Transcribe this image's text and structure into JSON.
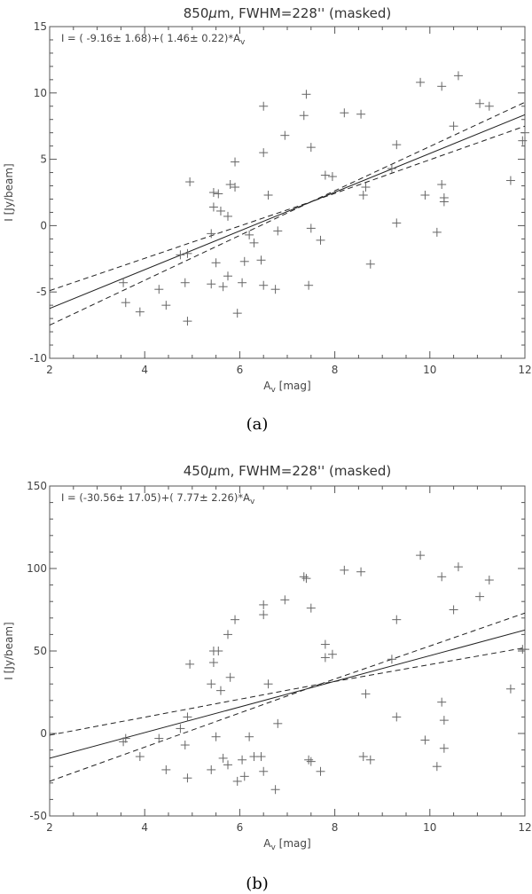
{
  "chart_data": [
    {
      "type": "scatter",
      "title": "850μm, FWHM=228'' (masked)",
      "annotation": "I = ( -9.16±  1.68)+(  1.46±  0.22)*Av",
      "xlabel": "Av [mag]",
      "ylabel": "I [Jy/beam]",
      "xlim": [
        2,
        12
      ],
      "ylim": [
        -10,
        15
      ],
      "xticks": [
        2,
        4,
        6,
        8,
        10,
        12
      ],
      "yticks": [
        -10,
        -5,
        0,
        5,
        10,
        15
      ],
      "caption": "(a)",
      "fit": {
        "intercept": -9.16,
        "slope": 1.46
      },
      "confidence_upper": [
        [
          2,
          -4.9
        ],
        [
          7.5,
          1.8
        ],
        [
          12,
          9.3
        ]
      ],
      "confidence_lower": [
        [
          2,
          -7.5
        ],
        [
          7.5,
          1.8
        ],
        [
          12,
          7.5
        ]
      ],
      "points": [
        [
          3.55,
          -4.3
        ],
        [
          3.6,
          -5.8
        ],
        [
          3.9,
          -6.5
        ],
        [
          4.3,
          -4.8
        ],
        [
          4.45,
          -6.0
        ],
        [
          4.75,
          -2.2
        ],
        [
          4.85,
          -4.3
        ],
        [
          4.9,
          -7.2
        ],
        [
          4.9,
          -2.1
        ],
        [
          4.95,
          3.3
        ],
        [
          5.4,
          -0.6
        ],
        [
          5.4,
          -4.4
        ],
        [
          5.45,
          2.5
        ],
        [
          5.45,
          1.4
        ],
        [
          5.5,
          -2.8
        ],
        [
          5.55,
          2.4
        ],
        [
          5.6,
          1.1
        ],
        [
          5.65,
          -4.6
        ],
        [
          5.75,
          0.7
        ],
        [
          5.75,
          -3.8
        ],
        [
          5.8,
          3.1
        ],
        [
          5.9,
          2.9
        ],
        [
          5.9,
          4.8
        ],
        [
          5.95,
          -6.6
        ],
        [
          6.05,
          -4.3
        ],
        [
          6.1,
          -2.7
        ],
        [
          6.2,
          -0.7
        ],
        [
          6.3,
          -1.3
        ],
        [
          6.45,
          -2.6
        ],
        [
          6.5,
          5.5
        ],
        [
          6.5,
          9.0
        ],
        [
          6.5,
          -4.5
        ],
        [
          6.6,
          2.3
        ],
        [
          6.75,
          -4.8
        ],
        [
          6.8,
          -0.4
        ],
        [
          6.95,
          6.8
        ],
        [
          7.35,
          8.3
        ],
        [
          7.4,
          9.9
        ],
        [
          7.45,
          -4.5
        ],
        [
          7.5,
          -0.2
        ],
        [
          7.5,
          5.9
        ],
        [
          7.7,
          -1.1
        ],
        [
          7.8,
          3.8
        ],
        [
          7.95,
          3.7
        ],
        [
          8.2,
          8.5
        ],
        [
          8.55,
          8.4
        ],
        [
          8.6,
          2.3
        ],
        [
          8.65,
          2.9
        ],
        [
          8.75,
          -2.9
        ],
        [
          9.2,
          4.3
        ],
        [
          9.3,
          6.1
        ],
        [
          9.3,
          0.2
        ],
        [
          9.8,
          10.8
        ],
        [
          9.9,
          2.3
        ],
        [
          10.15,
          -0.5
        ],
        [
          10.25,
          10.5
        ],
        [
          10.25,
          3.1
        ],
        [
          10.3,
          2.1
        ],
        [
          10.3,
          1.8
        ],
        [
          10.5,
          7.5
        ],
        [
          10.6,
          11.3
        ],
        [
          11.05,
          9.2
        ],
        [
          11.25,
          9.0
        ],
        [
          11.7,
          3.4
        ],
        [
          11.95,
          6.4
        ],
        [
          12.0,
          7.0
        ]
      ]
    },
    {
      "type": "scatter",
      "title": "450μm, FWHM=228'' (masked)",
      "annotation": "I = (-30.56± 17.05)+(  7.77±  2.26)*Av",
      "xlabel": "Av [mag]",
      "ylabel": "I [Jy/beam]",
      "xlim": [
        2,
        12
      ],
      "ylim": [
        -50,
        150
      ],
      "xticks": [
        2,
        4,
        6,
        8,
        10,
        12
      ],
      "yticks": [
        -50,
        0,
        50,
        100,
        150
      ],
      "caption": "(b)",
      "fit": {
        "intercept": -30.56,
        "slope": 7.77
      },
      "confidence_upper": [
        [
          2,
          -1.0
        ],
        [
          7.7,
          30.0
        ],
        [
          12,
          73.0
        ]
      ],
      "confidence_lower": [
        [
          2,
          -29.0
        ],
        [
          7.7,
          30.0
        ],
        [
          12,
          52.0
        ]
      ],
      "points": [
        [
          3.55,
          -5
        ],
        [
          3.6,
          -3
        ],
        [
          3.9,
          -14
        ],
        [
          4.3,
          -3
        ],
        [
          4.45,
          -22
        ],
        [
          4.75,
          3
        ],
        [
          4.85,
          -7
        ],
        [
          4.9,
          -27
        ],
        [
          4.9,
          10
        ],
        [
          4.95,
          42
        ],
        [
          5.4,
          -22
        ],
        [
          5.4,
          30
        ],
        [
          5.45,
          50
        ],
        [
          5.45,
          43
        ],
        [
          5.5,
          -2
        ],
        [
          5.55,
          50
        ],
        [
          5.6,
          26
        ],
        [
          5.65,
          -15
        ],
        [
          5.75,
          60
        ],
        [
          5.75,
          -19
        ],
        [
          5.8,
          34
        ],
        [
          5.9,
          69
        ],
        [
          5.95,
          -29
        ],
        [
          6.05,
          -16
        ],
        [
          6.1,
          -26
        ],
        [
          6.2,
          -2
        ],
        [
          6.3,
          -14
        ],
        [
          6.45,
          -14
        ],
        [
          6.5,
          78
        ],
        [
          6.5,
          72
        ],
        [
          6.5,
          -23
        ],
        [
          6.6,
          30
        ],
        [
          6.75,
          -34
        ],
        [
          6.8,
          6
        ],
        [
          6.95,
          81
        ],
        [
          7.35,
          95
        ],
        [
          7.4,
          94
        ],
        [
          7.45,
          -16
        ],
        [
          7.5,
          -17
        ],
        [
          7.5,
          76
        ],
        [
          7.7,
          -23
        ],
        [
          7.8,
          54
        ],
        [
          7.8,
          46
        ],
        [
          7.95,
          48
        ],
        [
          8.2,
          99
        ],
        [
          8.55,
          98
        ],
        [
          8.6,
          -14
        ],
        [
          8.65,
          24
        ],
        [
          8.75,
          -16
        ],
        [
          9.2,
          45
        ],
        [
          9.3,
          69
        ],
        [
          9.3,
          10
        ],
        [
          9.8,
          108
        ],
        [
          9.9,
          -4
        ],
        [
          10.15,
          -20
        ],
        [
          10.25,
          95
        ],
        [
          10.25,
          19
        ],
        [
          10.3,
          8
        ],
        [
          10.3,
          -9
        ],
        [
          10.5,
          75
        ],
        [
          10.6,
          101
        ],
        [
          11.05,
          83
        ],
        [
          11.25,
          93
        ],
        [
          11.7,
          27
        ],
        [
          11.95,
          51
        ],
        [
          12.0,
          51
        ]
      ]
    }
  ]
}
